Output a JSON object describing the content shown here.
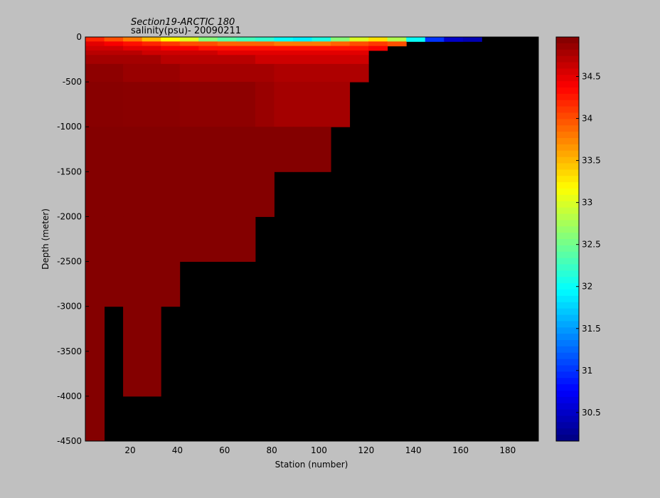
{
  "chart_data": {
    "type": "heatmap",
    "title": "Section19-ARCTIC 180",
    "subtitle": "salinity(psu)- 20090211",
    "xlabel": "Station (number)",
    "ylabel": "Depth (meter)",
    "xlim": [
      1,
      193
    ],
    "ylim": [
      -4500,
      0
    ],
    "xticks": [
      20,
      40,
      60,
      80,
      100,
      120,
      140,
      160,
      180
    ],
    "yticks": [
      -4500,
      -4000,
      -3500,
      -3000,
      -2500,
      -2000,
      -1500,
      -1000,
      -500,
      0
    ],
    "clim": [
      30.16,
      34.97
    ],
    "cticks": [
      30.5,
      31,
      31.5,
      32,
      32.5,
      33,
      33.5,
      34,
      34.5
    ],
    "colormap": "jet",
    "missing_color": "#000000",
    "xedges": [
      1,
      9,
      17,
      25,
      33,
      41,
      49,
      57,
      65,
      73,
      81,
      89,
      97,
      105,
      113,
      121,
      129,
      137,
      145,
      153,
      161,
      169,
      177,
      185,
      193
    ],
    "yedges": [
      0,
      -50,
      -100,
      -150,
      -200,
      -300,
      -500,
      -1000,
      -1500,
      -2000,
      -2500,
      -3000,
      -3500,
      -4000,
      -4500
    ],
    "values": [
      [
        34.2,
        34.0,
        33.8,
        33.5,
        33.2,
        33.0,
        32.6,
        32.4,
        32.3,
        32.2,
        32.0,
        31.9,
        32.1,
        32.6,
        33.0,
        33.3,
        32.8,
        32.0,
        31.0,
        30.5,
        30.4,
        null,
        null,
        null
      ],
      [
        34.5,
        34.4,
        34.3,
        34.2,
        34.1,
        34.0,
        34.0,
        33.9,
        33.9,
        33.9,
        33.8,
        33.8,
        33.8,
        33.9,
        34.0,
        34.1,
        34.0,
        null,
        null,
        null,
        null,
        null,
        null,
        null
      ],
      [
        34.6,
        34.6,
        34.5,
        34.5,
        34.4,
        34.4,
        34.3,
        34.3,
        34.3,
        34.3,
        34.3,
        34.3,
        34.3,
        34.3,
        34.3,
        34.4,
        null,
        null,
        null,
        null,
        null,
        null,
        null,
        null
      ],
      [
        34.7,
        34.7,
        34.7,
        34.6,
        34.6,
        34.6,
        34.6,
        34.5,
        34.5,
        34.5,
        34.5,
        34.5,
        34.5,
        34.5,
        34.5,
        null,
        null,
        null,
        null,
        null,
        null,
        null,
        null,
        null
      ],
      [
        34.8,
        34.8,
        34.8,
        34.8,
        34.7,
        34.7,
        34.7,
        34.7,
        34.7,
        34.6,
        34.6,
        34.6,
        34.6,
        34.6,
        34.6,
        null,
        null,
        null,
        null,
        null,
        null,
        null,
        null,
        null
      ],
      [
        34.9,
        34.9,
        34.85,
        34.85,
        34.85,
        34.8,
        34.8,
        34.8,
        34.8,
        34.8,
        34.75,
        34.75,
        34.75,
        34.75,
        34.75,
        null,
        null,
        null,
        null,
        null,
        null,
        null,
        null,
        null
      ],
      [
        34.93,
        34.93,
        34.92,
        34.92,
        34.92,
        34.9,
        34.9,
        34.9,
        34.9,
        34.85,
        34.8,
        34.8,
        34.8,
        34.8,
        null,
        null,
        null,
        null,
        null,
        null,
        null,
        null,
        null,
        null
      ],
      [
        34.95,
        34.95,
        34.95,
        34.95,
        34.95,
        34.95,
        34.95,
        34.95,
        34.95,
        34.95,
        34.95,
        34.95,
        34.95,
        null,
        null,
        null,
        null,
        null,
        null,
        null,
        null,
        null,
        null,
        null
      ],
      [
        34.95,
        34.95,
        34.95,
        34.95,
        34.95,
        34.95,
        34.95,
        34.95,
        34.95,
        34.95,
        null,
        null,
        null,
        null,
        null,
        null,
        null,
        null,
        null,
        null,
        null,
        null,
        null,
        null
      ],
      [
        34.95,
        34.95,
        34.95,
        34.95,
        34.95,
        34.95,
        34.95,
        34.95,
        34.95,
        null,
        null,
        null,
        null,
        null,
        null,
        null,
        null,
        null,
        null,
        null,
        null,
        null,
        null,
        null
      ],
      [
        34.95,
        34.95,
        34.95,
        34.95,
        34.95,
        null,
        null,
        null,
        null,
        null,
        null,
        null,
        null,
        null,
        null,
        null,
        null,
        null,
        null,
        null,
        null,
        null,
        null,
        null
      ],
      [
        34.95,
        null,
        34.95,
        34.95,
        null,
        null,
        null,
        null,
        null,
        null,
        null,
        null,
        null,
        null,
        null,
        null,
        null,
        null,
        null,
        null,
        null,
        null,
        null,
        null
      ],
      [
        34.95,
        null,
        34.95,
        34.95,
        null,
        null,
        null,
        null,
        null,
        null,
        null,
        null,
        null,
        null,
        null,
        null,
        null,
        null,
        null,
        null,
        null,
        null,
        null,
        null
      ],
      [
        34.95,
        null,
        null,
        null,
        null,
        null,
        null,
        null,
        null,
        null,
        null,
        null,
        null,
        null,
        null,
        null,
        null,
        null,
        null,
        null,
        null,
        null,
        null,
        null
      ]
    ]
  }
}
